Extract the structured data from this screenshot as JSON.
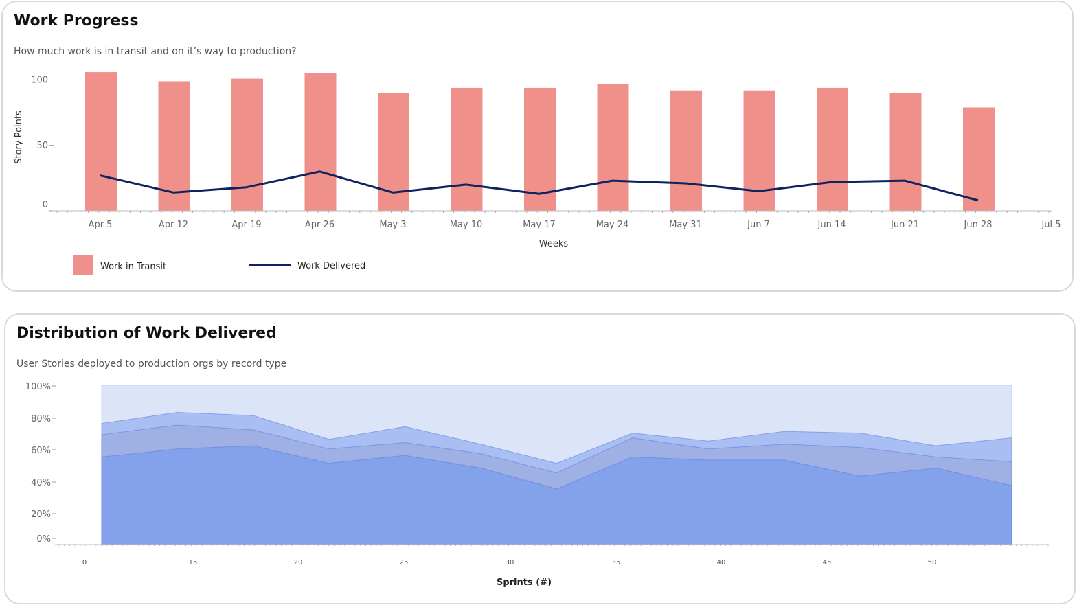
{
  "work_progress": {
    "title": "Work Progress",
    "subtitle": "How much work is in transit and on it’s way to production?",
    "legend": {
      "transit_label": "Work in Transit",
      "delivered_label": "Work Delivered"
    }
  },
  "distribution": {
    "title": "Distribution of Work Delivered",
    "subtitle": "User Stories deployed to production orgs by record type"
  },
  "colors": {
    "bar": "#f0908a",
    "line": "#0d2461",
    "area_top": "#dce5f7",
    "area_3": "#a9bff4",
    "area_2": "#9eb0e4",
    "area_1": "#84a1ec",
    "area_edge": "#5d7fe0"
  },
  "chart_data": [
    {
      "type": "bar",
      "xlabel": "Weeks",
      "ylabel": "Story Points",
      "ylim": [
        0,
        105
      ],
      "yticks": [
        0,
        50,
        100
      ],
      "grid": false,
      "legend_position": "bottom-left",
      "categories": [
        "Apr 5",
        "Apr 12",
        "Apr 19",
        "Apr 26",
        "May 3",
        "May 10",
        "May 17",
        "May 24",
        "May 31",
        "Jun 7",
        "Jun 14",
        "Jun 21",
        "Jun 28",
        "Jul 5"
      ],
      "series": [
        {
          "name": "Work in Transit",
          "type": "bar",
          "values": [
            106,
            99,
            101,
            105,
            90,
            94,
            94,
            97,
            92,
            92,
            94,
            90,
            79,
            null
          ]
        },
        {
          "name": "Work Delivered",
          "type": "line",
          "values": [
            27,
            14,
            18,
            30,
            14,
            20,
            13,
            23,
            21,
            15,
            22,
            23,
            8,
            null
          ]
        }
      ]
    },
    {
      "type": "area",
      "stacked": true,
      "xlabel": "Sprints (#)",
      "ylabel": "",
      "ylim": [
        0,
        100
      ],
      "yticks": [
        "0%",
        "20%",
        "40%",
        "60%",
        "80%",
        "100%"
      ],
      "xlim": [
        0,
        55
      ],
      "xticks": [
        0,
        15,
        20,
        25,
        30,
        35,
        40,
        45,
        50
      ],
      "grid": false,
      "x": [
        8,
        12,
        16,
        20,
        24,
        28,
        32,
        36,
        40,
        44,
        48,
        52,
        56
      ],
      "series": [
        {
          "values": [
            55,
            60,
            62,
            51,
            56,
            48,
            35,
            55,
            53,
            53,
            43,
            48,
            37
          ]
        },
        {
          "values": [
            69,
            75,
            72,
            60,
            64,
            57,
            45,
            67,
            60,
            63,
            61,
            55,
            52
          ]
        },
        {
          "values": [
            76,
            83,
            81,
            66,
            74,
            63,
            51,
            70,
            65,
            71,
            70,
            62,
            67
          ]
        },
        {
          "values": [
            100,
            100,
            100,
            100,
            100,
            100,
            100,
            100,
            100,
            100,
            100,
            100,
            100
          ]
        }
      ]
    }
  ]
}
